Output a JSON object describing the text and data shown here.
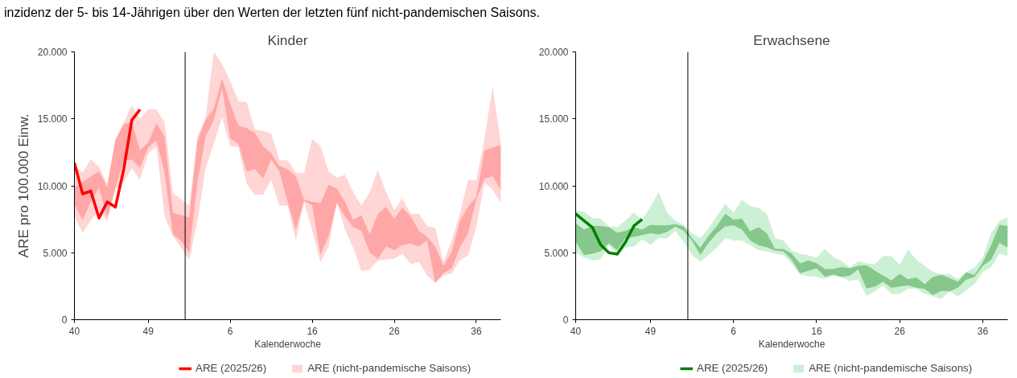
{
  "chart_data": [
    {
      "type": "line",
      "title": "Kinder",
      "xlabel": "Kalenderwoche",
      "ylabel": "ARE pro 100.000 Einw.",
      "annotations": [
        "inzidenz der 5- bis 14-Jährigen über den Werten der letzten fünf nicht-pandemischen Saisons."
      ],
      "categories": [
        "40",
        null,
        null,
        null,
        null,
        null,
        null,
        null,
        null,
        "49",
        null,
        null,
        null,
        null,
        null,
        null,
        null,
        null,
        null,
        "6",
        null,
        null,
        null,
        null,
        null,
        null,
        null,
        null,
        null,
        "16",
        null,
        null,
        null,
        null,
        null,
        null,
        null,
        null,
        null,
        "26",
        null,
        null,
        null,
        null,
        null,
        null,
        null,
        null,
        null,
        "36",
        null,
        null,
        null
      ],
      "ylim": [
        0,
        20000
      ],
      "yticks": [
        {
          "value": 0,
          "label": "0"
        },
        {
          "value": 5000,
          "label": "5.000"
        },
        {
          "value": 10000,
          "label": "10.000"
        },
        {
          "value": 15000,
          "label": "15.000"
        },
        {
          "value": 20000,
          "label": "20.000"
        }
      ],
      "legend": "bottom",
      "grid": false,
      "series": [
        {
          "name": "ARE (nicht-pandemische Saisons)",
          "type": "area",
          "color": "#ffd5d5",
          "values": [
            null,
            null,
            null,
            null,
            null,
            null,
            null,
            null,
            null,
            null,
            null,
            null,
            null,
            null,
            null,
            null,
            null,
            null,
            null,
            null,
            null,
            null,
            null,
            null,
            null,
            null,
            null,
            null,
            null,
            null,
            null,
            null,
            null,
            null,
            null,
            null,
            null,
            null,
            null,
            null,
            null,
            null,
            null,
            null,
            null,
            null,
            null,
            null,
            null,
            null,
            null,
            null,
            null
          ],
          "lower": [
            7720,
            6490,
            7450,
            8080,
            7370,
            9700,
            10250,
            11330,
            10460,
            12400,
            12960,
            7720,
            6270,
            5370,
            4460,
            7350,
            11330,
            13140,
            15120,
            12960,
            12920,
            10150,
            9340,
            9340,
            10430,
            8530,
            8530,
            5910,
            8800,
            6630,
            4280,
            5460,
            8800,
            6700,
            5370,
            3650,
            3740,
            4400,
            4500,
            4550,
            4920,
            4140,
            4320,
            3290,
            2750,
            3290,
            3470,
            4430,
            4820,
            6900,
            10250,
            9700,
            8710
          ],
          "upper": [
            11500,
            10970,
            12000,
            11400,
            10150,
            13500,
            14700,
            16000,
            15000,
            15700,
            15700,
            14750,
            9430,
            9000,
            8530,
            13700,
            15100,
            20000,
            19100,
            17800,
            16300,
            16250,
            14200,
            14100,
            13900,
            11900,
            11900,
            10970,
            10930,
            13500,
            12960,
            11060,
            10600,
            10820,
            9520,
            8530,
            9520,
            11150,
            9520,
            8170,
            9070,
            7900,
            7930,
            7000,
            6850,
            4300,
            5910,
            7900,
            10420,
            10420,
            13500,
            17400,
            13140
          ]
        },
        {
          "type": "area",
          "color": "#ffa6a6",
          "values": [
            null,
            null,
            null,
            null,
            null,
            null,
            null,
            null,
            null,
            null,
            null,
            null,
            null,
            null,
            null,
            null,
            null,
            null,
            null,
            null,
            null,
            null,
            null,
            null,
            null,
            null,
            null,
            null,
            null,
            null,
            null,
            null,
            null,
            null,
            null,
            null,
            null,
            null,
            null,
            null,
            null,
            null,
            null,
            null,
            null,
            null,
            null,
            null,
            null,
            null,
            null,
            null,
            null
          ],
          "lower": [
            8620,
            7450,
            8800,
            9880,
            7630,
            9880,
            11870,
            11960,
            11330,
            12870,
            13410,
            10970,
            6360,
            5910,
            5010,
            10250,
            13680,
            14940,
            17290,
            13530,
            13140,
            11060,
            11240,
            10520,
            11960,
            11060,
            8800,
            6720,
            8890,
            8530,
            4820,
            6270,
            8710,
            7720,
            6900,
            6630,
            5010,
            4550,
            5460,
            5190,
            5550,
            5690,
            5460,
            5910,
            2750,
            3470,
            3830,
            5370,
            6450,
            8980,
            10520,
            10700,
            9700
          ],
          "upper": [
            9880,
            10250,
            10700,
            11060,
            9880,
            13400,
            14580,
            14760,
            12680,
            13230,
            14670,
            13680,
            7990,
            7810,
            7630,
            13320,
            14940,
            15760,
            18010,
            16120,
            14490,
            14310,
            13950,
            12960,
            12410,
            11470,
            11240,
            10700,
            8980,
            8800,
            8710,
            10070,
            9790,
            8800,
            7450,
            7810,
            6360,
            7900,
            8440,
            7540,
            8350,
            7720,
            6630,
            6180,
            5460,
            4010,
            5040,
            7390,
            8440,
            9160,
            12630,
            12870,
            13050
          ]
        },
        {
          "name": "ARE (2025/26)",
          "color": "#ff0000",
          "values": [
            11700,
            9400,
            9600,
            7600,
            8800,
            8400,
            11200,
            14900,
            15700,
            null,
            null,
            null,
            null,
            null,
            null,
            null,
            null,
            null,
            null,
            null,
            null,
            null,
            null,
            null,
            null,
            null,
            null,
            null,
            null,
            null,
            null,
            null,
            null,
            null,
            null,
            null,
            null,
            null,
            null,
            null,
            null,
            null,
            null,
            null,
            null,
            null,
            null,
            null,
            null,
            null,
            null,
            null,
            null
          ]
        }
      ]
    },
    {
      "type": "line",
      "title": "Erwachsene",
      "xlabel": "Kalenderwoche",
      "categories": [
        "40",
        null,
        null,
        null,
        null,
        null,
        null,
        null,
        null,
        "49",
        null,
        null,
        null,
        null,
        null,
        null,
        null,
        null,
        null,
        "6",
        null,
        null,
        null,
        null,
        null,
        null,
        null,
        null,
        null,
        "16",
        null,
        null,
        null,
        null,
        null,
        null,
        null,
        null,
        null,
        "26",
        null,
        null,
        null,
        null,
        null,
        null,
        null,
        null,
        null,
        "36",
        null,
        null,
        null
      ],
      "ylim": [
        0,
        20000
      ],
      "yticks": [
        {
          "value": 0,
          "label": "0"
        },
        {
          "value": 5000,
          "label": "5.000"
        },
        {
          "value": 10000,
          "label": "10.000"
        },
        {
          "value": 15000,
          "label": "15.000"
        },
        {
          "value": 20000,
          "label": "20.000"
        }
      ],
      "legend": "bottom",
      "grid": false,
      "series": [
        {
          "name": "ARE (nicht-pandemische Saisons)",
          "type": "area",
          "color": "#ccf0d3",
          "values": [
            null,
            null,
            null,
            null,
            null,
            null,
            null,
            null,
            null,
            null,
            null,
            null,
            null,
            null,
            null,
            null,
            null,
            null,
            null,
            null,
            null,
            null,
            null,
            null,
            null,
            null,
            null,
            null,
            null,
            null,
            null,
            null,
            null,
            null,
            null,
            null,
            null,
            null,
            null,
            null,
            null,
            null,
            null,
            null,
            null,
            null,
            null,
            null,
            null,
            null,
            null,
            null,
            null
          ],
          "lower": [
            5010,
            4650,
            4430,
            4510,
            5560,
            4920,
            5380,
            5470,
            6010,
            5590,
            6100,
            6060,
            6640,
            5830,
            4830,
            4330,
            4830,
            5380,
            6100,
            5920,
            5920,
            5590,
            5190,
            5100,
            4920,
            4830,
            4200,
            3380,
            3240,
            3200,
            3060,
            3290,
            3170,
            2880,
            3020,
            1760,
            2120,
            2570,
            1900,
            1940,
            2300,
            2330,
            1940,
            1760,
            1540,
            2120,
            1720,
            2210,
            2660,
            3570,
            3930,
            4920,
            4740
          ],
          "upper": [
            8120,
            8080,
            7580,
            7540,
            6960,
            6910,
            7400,
            8000,
            7450,
            8440,
            9520,
            8000,
            7370,
            7100,
            6450,
            6090,
            6820,
            7720,
            8670,
            8000,
            8950,
            8480,
            8350,
            7910,
            6090,
            5910,
            5150,
            4920,
            4800,
            4620,
            5290,
            4690,
            4380,
            3890,
            4380,
            4200,
            4150,
            4740,
            4740,
            4110,
            5230,
            4470,
            4020,
            3570,
            3390,
            3420,
            3020,
            3570,
            3890,
            4650,
            6460,
            7370,
            7640
          ]
        },
        {
          "type": "area",
          "color": "#86c78b",
          "values": [
            null,
            null,
            null,
            null,
            null,
            null,
            null,
            null,
            null,
            null,
            null,
            null,
            null,
            null,
            null,
            null,
            null,
            null,
            null,
            null,
            null,
            null,
            null,
            null,
            null,
            null,
            null,
            null,
            null,
            null,
            null,
            null,
            null,
            null,
            null,
            null,
            null,
            null,
            null,
            null,
            null,
            null,
            null,
            null,
            null,
            null,
            null,
            null,
            null,
            null,
            null,
            null,
            null
          ],
          "lower": [
            5820,
            4830,
            4920,
            5100,
            5700,
            5190,
            6100,
            6190,
            6320,
            6460,
            6370,
            6550,
            6970,
            6640,
            5920,
            4830,
            5740,
            6460,
            6970,
            7040,
            6730,
            5920,
            5560,
            5410,
            5160,
            5100,
            4470,
            3470,
            3650,
            3840,
            3200,
            3380,
            3200,
            3290,
            3750,
            2330,
            2480,
            2840,
            2390,
            2480,
            2570,
            2390,
            2300,
            1850,
            2150,
            2120,
            2390,
            2990,
            3200,
            4020,
            4470,
            5740,
            5380
          ],
          "upper": [
            7190,
            6730,
            7000,
            7000,
            6910,
            6500,
            6640,
            6910,
            6730,
            7090,
            7040,
            7040,
            7130,
            6970,
            6100,
            5380,
            6280,
            7000,
            7910,
            7460,
            7550,
            6610,
            6900,
            6460,
            5290,
            5290,
            4920,
            4200,
            4430,
            4200,
            3780,
            3780,
            3930,
            3840,
            4020,
            4070,
            3660,
            3290,
            2930,
            3420,
            3020,
            3150,
            2660,
            3200,
            3350,
            3110,
            2840,
            3530,
            3350,
            4300,
            5560,
            7090,
            7000
          ]
        },
        {
          "name": "ARE (2025/26)",
          "color": "#008000",
          "values": [
            7900,
            7400,
            6900,
            5600,
            5000,
            4900,
            5800,
            7000,
            7500,
            null,
            null,
            null,
            null,
            null,
            null,
            null,
            null,
            null,
            null,
            null,
            null,
            null,
            null,
            null,
            null,
            null,
            null,
            null,
            null,
            null,
            null,
            null,
            null,
            null,
            null,
            null,
            null,
            null,
            null,
            null,
            null,
            null,
            null,
            null,
            null,
            null,
            null,
            null,
            null,
            null,
            null,
            null,
            null
          ]
        }
      ]
    }
  ]
}
